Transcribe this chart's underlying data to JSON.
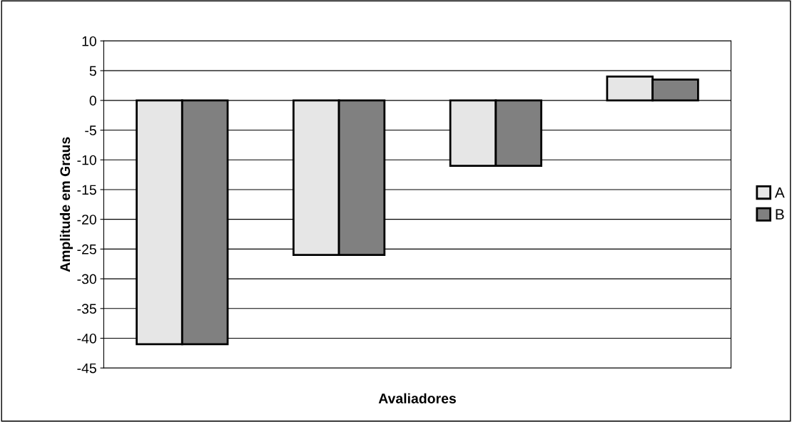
{
  "chart_data": {
    "type": "bar",
    "xlabel": "Avaliadores",
    "ylabel": "Amplitude em Graus",
    "categories": [
      null,
      null,
      null,
      null
    ],
    "series": [
      {
        "name": "A",
        "color": "#e6e6e6",
        "values": [
          -41,
          -26,
          -11,
          4
        ]
      },
      {
        "name": "B",
        "color": "#808080",
        "values": [
          -41,
          -26,
          -11,
          3.5
        ]
      }
    ],
    "ylim": [
      -45,
      10
    ],
    "yticks": [
      -45,
      -40,
      -35,
      -30,
      -25,
      -20,
      -15,
      -10,
      -5,
      0,
      5,
      10
    ],
    "grid": "y",
    "legend": "right"
  }
}
